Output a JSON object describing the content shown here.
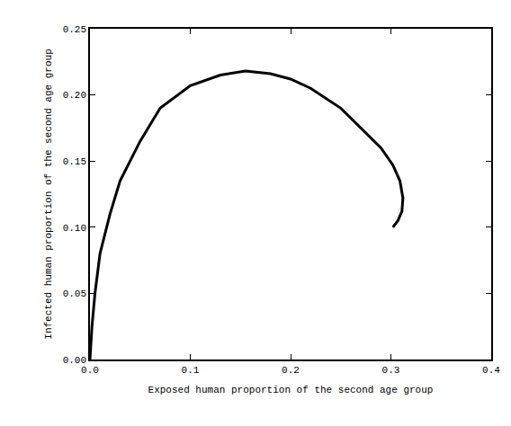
{
  "chart_data": {
    "type": "line",
    "x_label": "Exposed human proportion of the second age group",
    "y_label": "Infected human proportion of the second age group",
    "x": [
      0.0,
      0.002,
      0.005,
      0.01,
      0.02,
      0.03,
      0.05,
      0.07,
      0.1,
      0.13,
      0.155,
      0.18,
      0.2,
      0.22,
      0.25,
      0.27,
      0.29,
      0.302,
      0.309,
      0.312,
      0.311,
      0.307,
      0.302
    ],
    "values": [
      0.0,
      0.025,
      0.05,
      0.08,
      0.11,
      0.135,
      0.165,
      0.19,
      0.207,
      0.215,
      0.218,
      0.216,
      0.212,
      0.205,
      0.19,
      0.175,
      0.16,
      0.147,
      0.135,
      0.122,
      0.112,
      0.105,
      0.1
    ],
    "color": "#000000",
    "xlim": [
      0.0,
      0.4
    ],
    "xticks": [
      {
        "value": 0.0,
        "label": "0.0"
      },
      0.1,
      0.2,
      0.3,
      0.4
    ],
    "ylim": [
      0.0,
      0.25
    ],
    "yticks": [
      {
        "value": 0.0,
        "label": "0.00"
      },
      0.05,
      {
        "value": 0.1,
        "label": "0.10"
      },
      0.15,
      {
        "value": 0.2,
        "label": "0.20"
      },
      0.25
    ],
    "grid": false
  }
}
